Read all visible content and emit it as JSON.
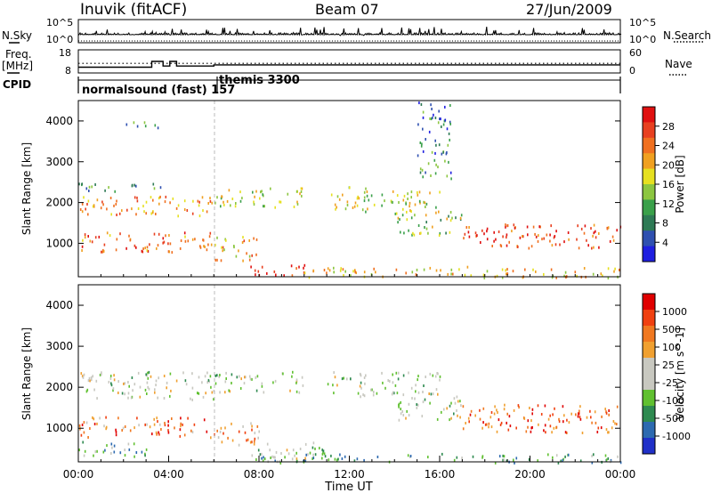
{
  "header": {
    "title": "Inuvik (fitACF)",
    "beam": "Beam 07",
    "date": "27/Jun/2009"
  },
  "left_labels": {
    "nsky": "N.Sky",
    "freq": "Freq.",
    "freq_unit": "[MHz]",
    "cpid": "CPID"
  },
  "right_labels": {
    "nsearch": "N.Search",
    "nave": "Nave"
  },
  "cpid_modes": [
    {
      "label": "normalsound (fast) 157"
    },
    {
      "label": "themis 3300"
    }
  ],
  "colors": {
    "power": [
      "#1f1fe0",
      "#2f50b0",
      "#2e7a55",
      "#3aa04a",
      "#8cc640",
      "#e6e020",
      "#f0a020",
      "#f07020",
      "#e84020",
      "#e01010"
    ],
    "velocity": [
      "#2030c8",
      "#2d6ab0",
      "#2e8a50",
      "#60c030",
      "#c8c8c0",
      "#c8c8c0",
      "#f0a030",
      "#f07820",
      "#f04010",
      "#e00000"
    ]
  },
  "chart_data": [
    {
      "type": "line",
      "name": "nsky-nsearch",
      "ylabels_left": [
        "10^5",
        "10^0"
      ],
      "ylabels_right": [
        "10^5",
        "10^0"
      ],
      "description_series": [
        {
          "name": "N.Sky",
          "style": "solid"
        },
        {
          "name": "N.Search",
          "style": "dotted"
        }
      ]
    },
    {
      "type": "line",
      "name": "freq-nave",
      "yticks_left": [
        "18",
        "8"
      ],
      "yticks_right": [
        "60",
        "0"
      ],
      "ylim_left": [
        8,
        18
      ],
      "ylim_right": [
        0,
        60
      ],
      "freq_segments": [
        {
          "x": [
            0.0,
            3.25
          ],
          "y": 10.5
        },
        {
          "x": [
            3.25,
            3.75
          ],
          "y": 13
        },
        {
          "x": [
            3.75,
            4.05
          ],
          "y": 11
        },
        {
          "x": [
            4.05,
            4.35
          ],
          "y": 13
        },
        {
          "x": [
            4.35,
            6.0
          ],
          "y": 11
        },
        {
          "x": [
            6.0,
            24.0
          ],
          "y": 11.5
        }
      ],
      "nave_level": 25
    },
    {
      "type": "heatmap",
      "name": "power",
      "xlabel": "",
      "ylabel": "Slant Range [km]",
      "colorbar_label": "Power [dB]",
      "colorbar_ticks": [
        "28",
        "24",
        "20",
        "16",
        "12",
        "8",
        "4"
      ],
      "ylim": [
        180,
        4500
      ],
      "yticks": [
        1000,
        2000,
        3000,
        4000
      ],
      "xlim_hours": [
        0,
        24
      ],
      "scatter_bands": [
        {
          "t": [
            0.0,
            6.0
          ],
          "r": [
            1700,
            2200
          ],
          "level": 0.7
        },
        {
          "t": [
            0.0,
            6.0
          ],
          "r": [
            800,
            1300
          ],
          "level": 0.75
        },
        {
          "t": [
            0.0,
            4.0
          ],
          "r": [
            2300,
            2500
          ],
          "level": 0.3
        },
        {
          "t": [
            6.0,
            10.0
          ],
          "r": [
            1900,
            2400
          ],
          "level": 0.5
        },
        {
          "t": [
            6.0,
            8.0
          ],
          "r": [
            600,
            1200
          ],
          "level": 0.65
        },
        {
          "t": [
            7.5,
            10.0
          ],
          "r": [
            200,
            500
          ],
          "level": 0.95
        },
        {
          "t": [
            11.0,
            16.0
          ],
          "r": [
            1800,
            2400
          ],
          "level": 0.5
        },
        {
          "t": [
            14.0,
            17.0
          ],
          "r": [
            1200,
            1800
          ],
          "level": 0.45
        },
        {
          "t": [
            17.0,
            24.0
          ],
          "r": [
            900,
            1500
          ],
          "level": 0.85
        },
        {
          "t": [
            10.0,
            24.0
          ],
          "r": [
            180,
            450
          ],
          "level": 0.6
        },
        {
          "t": [
            1.5,
            3.5
          ],
          "r": [
            3850,
            4000
          ],
          "level": 0.3
        },
        {
          "t": [
            15.0,
            16.5
          ],
          "r": [
            2600,
            4500
          ],
          "level": 0.25
        }
      ]
    },
    {
      "type": "heatmap",
      "name": "velocity",
      "xlabel": "Time UT",
      "ylabel": "Slant Range [km]",
      "colorbar_label": "Velocity [m s^-1]",
      "colorbar_ticks": [
        "1000",
        "500",
        "100",
        "25",
        "-25",
        "-100",
        "-500",
        "-1000"
      ],
      "ylim": [
        180,
        4500
      ],
      "yticks": [
        1000,
        2000,
        3000,
        4000
      ],
      "xlim_hours": [
        0,
        24
      ],
      "xticks": [
        "00:00",
        "04:00",
        "08:00",
        "12:00",
        "16:00",
        "20:00",
        "00:00"
      ],
      "scatter_bands": [
        {
          "t": [
            0.0,
            6.0
          ],
          "r": [
            1700,
            2400
          ],
          "level": 0.45
        },
        {
          "t": [
            0.0,
            6.0
          ],
          "r": [
            800,
            1300
          ],
          "level": 0.75
        },
        {
          "t": [
            0.0,
            3.0
          ],
          "r": [
            300,
            700
          ],
          "level": 0.3
        },
        {
          "t": [
            6.0,
            10.0
          ],
          "r": [
            1900,
            2400
          ],
          "level": 0.45
        },
        {
          "t": [
            6.0,
            8.0
          ],
          "r": [
            600,
            1200
          ],
          "level": 0.7
        },
        {
          "t": [
            7.5,
            11.0
          ],
          "r": [
            200,
            700
          ],
          "level": 0.45
        },
        {
          "t": [
            11.0,
            16.0
          ],
          "r": [
            1800,
            2400
          ],
          "level": 0.45
        },
        {
          "t": [
            14.0,
            17.0
          ],
          "r": [
            1200,
            1800
          ],
          "level": 0.45
        },
        {
          "t": [
            17.0,
            24.0
          ],
          "r": [
            900,
            1600
          ],
          "level": 0.8
        },
        {
          "t": [
            8.0,
            24.0
          ],
          "r": [
            180,
            400
          ],
          "level": 0.3
        }
      ]
    }
  ]
}
